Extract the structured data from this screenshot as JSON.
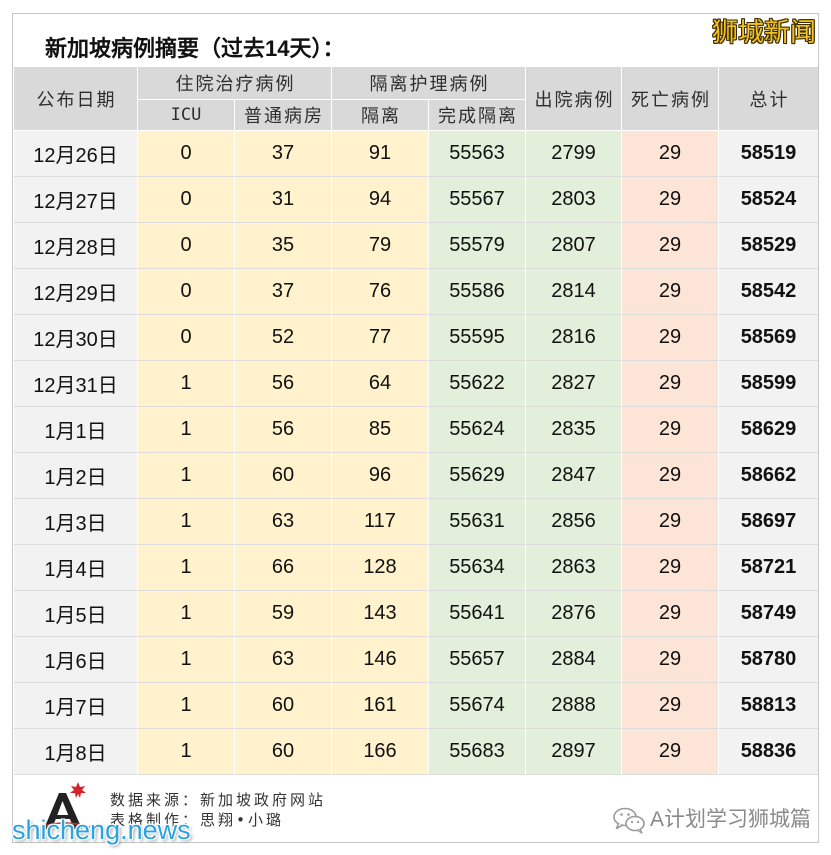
{
  "watermark_top": "狮城新闻",
  "chart_data": {
    "type": "table",
    "title": "新加坡病例摘要（过去14天）：",
    "header": {
      "date": "公布日期",
      "hospitalised_group": "住院治疗病例",
      "community_care_group": "隔离护理病例",
      "icu": "ICU",
      "general_ward": "普通病房",
      "isolation": "隔离",
      "completed_isolation": "完成隔离",
      "discharged": "出院病例",
      "deaths": "死亡病例",
      "total": "总计"
    },
    "rows": [
      {
        "date": "12月26日",
        "icu": 0,
        "general_ward": 37,
        "isolation": 91,
        "completed_isolation": 55563,
        "discharged": 2799,
        "deaths": 29,
        "total": 58519
      },
      {
        "date": "12月27日",
        "icu": 0,
        "general_ward": 31,
        "isolation": 94,
        "completed_isolation": 55567,
        "discharged": 2803,
        "deaths": 29,
        "total": 58524
      },
      {
        "date": "12月28日",
        "icu": 0,
        "general_ward": 35,
        "isolation": 79,
        "completed_isolation": 55579,
        "discharged": 2807,
        "deaths": 29,
        "total": 58529
      },
      {
        "date": "12月29日",
        "icu": 0,
        "general_ward": 37,
        "isolation": 76,
        "completed_isolation": 55586,
        "discharged": 2814,
        "deaths": 29,
        "total": 58542
      },
      {
        "date": "12月30日",
        "icu": 0,
        "general_ward": 52,
        "isolation": 77,
        "completed_isolation": 55595,
        "discharged": 2816,
        "deaths": 29,
        "total": 58569
      },
      {
        "date": "12月31日",
        "icu": 1,
        "general_ward": 56,
        "isolation": 64,
        "completed_isolation": 55622,
        "discharged": 2827,
        "deaths": 29,
        "total": 58599
      },
      {
        "date": "1月1日",
        "icu": 1,
        "general_ward": 56,
        "isolation": 85,
        "completed_isolation": 55624,
        "discharged": 2835,
        "deaths": 29,
        "total": 58629
      },
      {
        "date": "1月2日",
        "icu": 1,
        "general_ward": 60,
        "isolation": 96,
        "completed_isolation": 55629,
        "discharged": 2847,
        "deaths": 29,
        "total": 58662
      },
      {
        "date": "1月3日",
        "icu": 1,
        "general_ward": 63,
        "isolation": 117,
        "completed_isolation": 55631,
        "discharged": 2856,
        "deaths": 29,
        "total": 58697
      },
      {
        "date": "1月4日",
        "icu": 1,
        "general_ward": 66,
        "isolation": 128,
        "completed_isolation": 55634,
        "discharged": 2863,
        "deaths": 29,
        "total": 58721
      },
      {
        "date": "1月5日",
        "icu": 1,
        "general_ward": 59,
        "isolation": 143,
        "completed_isolation": 55641,
        "discharged": 2876,
        "deaths": 29,
        "total": 58749
      },
      {
        "date": "1月6日",
        "icu": 1,
        "general_ward": 63,
        "isolation": 146,
        "completed_isolation": 55657,
        "discharged": 2884,
        "deaths": 29,
        "total": 58780
      },
      {
        "date": "1月7日",
        "icu": 1,
        "general_ward": 60,
        "isolation": 161,
        "completed_isolation": 55674,
        "discharged": 2888,
        "deaths": 29,
        "total": 58813
      },
      {
        "date": "1月8日",
        "icu": 1,
        "general_ward": 60,
        "isolation": 166,
        "completed_isolation": 55683,
        "discharged": 2897,
        "deaths": 29,
        "total": 58836
      }
    ]
  },
  "footer": {
    "source": "数据来源：新加坡政府网站",
    "credit": "表格制作：思翔•小璐",
    "site_watermark": "shicheng.news",
    "wechat_account": "A计划学习狮城篇"
  },
  "icons": {
    "logo": "logo-icon",
    "wechat": "wechat-icon"
  },
  "colors": {
    "header_bg": "#d9d9d9",
    "date_bg": "#f2f2f2",
    "hospital_bg": "#fff2cc",
    "isolation_bg": "#fff2cc",
    "completed_bg": "#e2efda",
    "discharged_bg": "#e2efda",
    "deaths_bg": "#fce4d6",
    "total_bg": "#f2f2f2",
    "watermark_top": "#f3c21c",
    "watermark_site": "#2ba3e0"
  }
}
